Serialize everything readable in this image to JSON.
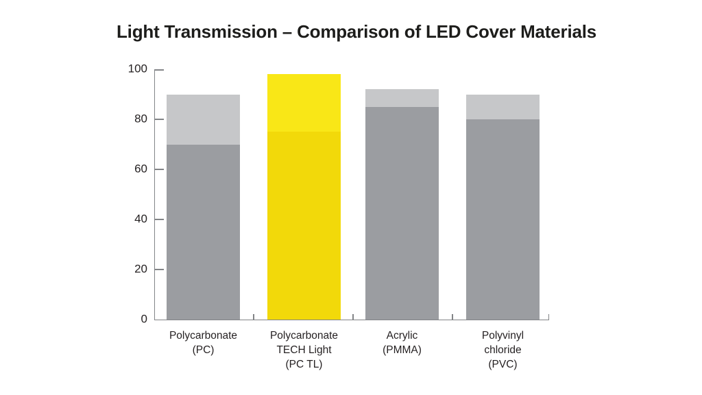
{
  "chart_data": {
    "type": "bar",
    "stacked": true,
    "title": "Light Transmission – Comparison of LED Cover Materials",
    "categories": [
      {
        "name": "Polycarbonate (PC)",
        "lines": [
          "Polycarbonate",
          "(PC)"
        ]
      },
      {
        "name": "Polycarbonate TECH Light (PC TL)",
        "lines": [
          "Polycarbonate",
          "TECH Light",
          "(PC TL)"
        ]
      },
      {
        "name": "Acrylic (PMMA)",
        "lines": [
          "Acrylic",
          "(PMMA)"
        ]
      },
      {
        "name": "Polyvinyl chloride (PVC)",
        "lines": [
          "Polyvinyl",
          "chloride",
          "(PVC)"
        ]
      }
    ],
    "series": [
      {
        "name": "base-segment",
        "color": "#9b9da1",
        "values": [
          70,
          75,
          85,
          80
        ]
      },
      {
        "name": "upper-segment",
        "color": "#c6c7c9",
        "values": [
          20,
          23,
          7,
          10
        ]
      }
    ],
    "totals": [
      90,
      98,
      92,
      90
    ],
    "highlight": {
      "index": 1,
      "base_color": "#f2d90a",
      "upper_color": "#f9e717"
    },
    "xlabel": "",
    "ylabel": "",
    "ylim": [
      0,
      100
    ],
    "y_ticks": [
      0,
      20,
      40,
      60,
      80,
      100
    ],
    "grid": false,
    "legend": "none",
    "axis_color": "#828487",
    "text_color": "#231f20",
    "background_color": "#ffffff"
  }
}
